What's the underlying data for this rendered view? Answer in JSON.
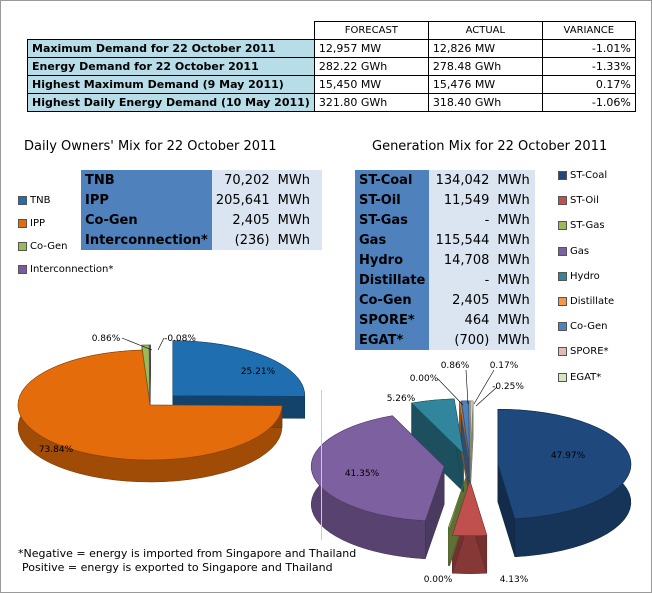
{
  "demand_table": {
    "headers": [
      "FORECAST",
      "ACTUAL",
      "VARIANCE"
    ],
    "rows": [
      {
        "label": "Maximum Demand for 22 October 2011",
        "forecast": "12,957  MW",
        "actual": "12,826  MW",
        "variance": "-1.01%"
      },
      {
        "label": "Energy Demand for 22 October 2011",
        "forecast": "282.22  GWh",
        "actual": "278.48  GWh",
        "variance": "-1.33%"
      },
      {
        "label": "Highest Maximum Demand (9 May 2011)",
        "forecast": "15,450  MW",
        "actual": "15,476  MW",
        "variance": "0.17%"
      },
      {
        "label": "Highest Daily Energy Demand (10 May 2011)",
        "forecast": "321.80  GWh",
        "actual": "318.40  GWh",
        "variance": "-1.06%"
      }
    ]
  },
  "owners": {
    "title": "Daily Owners' Mix for 22 October 2011",
    "rows": [
      {
        "name": "TNB",
        "value": "70,202",
        "unit": "MWh"
      },
      {
        "name": "IPP",
        "value": "205,641",
        "unit": "MWh"
      },
      {
        "name": "Co-Gen",
        "value": "2,405",
        "unit": "MWh"
      },
      {
        "name": "Interconnection*",
        "value": "(236)",
        "unit": "MWh"
      }
    ],
    "legend": [
      "TNB",
      "IPP",
      "Co-Gen",
      "Interconnection*"
    ]
  },
  "generation": {
    "title": "Generation Mix for 22 October 2011",
    "rows": [
      {
        "name": "ST-Coal",
        "value": "134,042",
        "unit": "MWh"
      },
      {
        "name": "ST-Oil",
        "value": "11,549",
        "unit": "MWh"
      },
      {
        "name": "ST-Gas",
        "value": "-",
        "unit": "MWh"
      },
      {
        "name": "Gas",
        "value": "115,544",
        "unit": "MWh"
      },
      {
        "name": "Hydro",
        "value": "14,708",
        "unit": "MWh"
      },
      {
        "name": "Distillate",
        "value": "-",
        "unit": "MWh"
      },
      {
        "name": "Co-Gen",
        "value": "2,405",
        "unit": "MWh"
      },
      {
        "name": "SPORE*",
        "value": "464",
        "unit": "MWh"
      },
      {
        "name": "EGAT*",
        "value": "(700)",
        "unit": "MWh"
      }
    ],
    "legend": [
      "ST-Coal",
      "ST-Oil",
      "ST-Gas",
      "Gas",
      "Hydro",
      "Distillate",
      "Co-Gen",
      "SPORE*",
      "EGAT*"
    ]
  },
  "notes": {
    "line1": "*Negative = energy is imported from Singapore and Thailand",
    "line2": "Positive = energy is exported to Singapore and Thailand"
  },
  "chart_data": [
    {
      "type": "pie",
      "title": "Daily Owners' Mix for 22 October 2011",
      "categories": [
        "TNB",
        "IPP",
        "Co-Gen",
        "Interconnection*"
      ],
      "values": [
        25.21,
        73.84,
        0.86,
        -0.08
      ],
      "labels": [
        "25.21%",
        "73.84%",
        "0.86%",
        "-0.08%"
      ],
      "colors": [
        "#1f6eb0",
        "#e46c0a",
        "#9bbb59",
        "#7b5b9e"
      ],
      "legend_position": "left"
    },
    {
      "type": "pie",
      "title": "Generation Mix for 22 October 2011",
      "categories": [
        "ST-Coal",
        "ST-Oil",
        "ST-Gas",
        "Gas",
        "Hydro",
        "Distillate",
        "Co-Gen",
        "SPORE*",
        "EGAT*"
      ],
      "values": [
        47.97,
        4.13,
        0.0,
        41.35,
        5.26,
        0.0,
        0.86,
        0.17,
        -0.25
      ],
      "labels": [
        "47.97%",
        "4.13%",
        "0.00%",
        "41.35%",
        "5.26%",
        "0.00%",
        "0.86%",
        "0.17%",
        "-0.25%"
      ],
      "colors": [
        "#1f497d",
        "#c0504d",
        "#9bbb59",
        "#7d60a0",
        "#31859c",
        "#f79646",
        "#4f81bd",
        "#e6b9b8",
        "#d7e4bd"
      ],
      "legend_position": "right"
    }
  ]
}
